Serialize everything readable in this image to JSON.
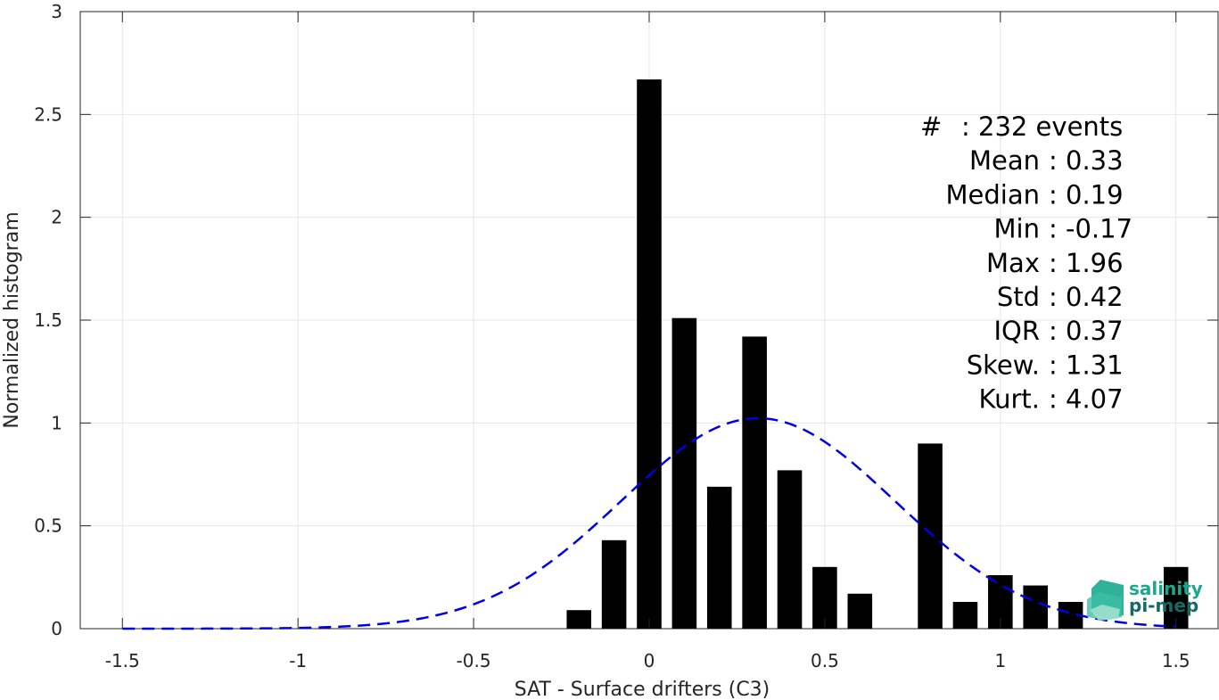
{
  "chart_data": {
    "type": "bar",
    "xlabel": "SAT - Surface drifters (C3)",
    "ylabel": "Normalized histogram",
    "xlim": [
      -1.62,
      1.62
    ],
    "ylim": [
      0,
      3
    ],
    "xticks": [
      -1.5,
      -1,
      -0.5,
      0,
      0.5,
      1,
      1.5
    ],
    "xtick_labels": [
      "-1.5",
      "-1",
      "-0.5",
      "0",
      "0.5",
      "1",
      "1.5"
    ],
    "yticks": [
      0,
      0.5,
      1,
      1.5,
      2,
      2.5,
      3
    ],
    "ytick_labels": [
      "0",
      "0.5",
      "1",
      "1.5",
      "2",
      "2.5",
      "3"
    ],
    "grid": true,
    "bar_color": "#000000",
    "bins": [
      {
        "x": -0.2,
        "y": 0.09
      },
      {
        "x": -0.1,
        "y": 0.43
      },
      {
        "x": 0.0,
        "y": 2.67
      },
      {
        "x": 0.1,
        "y": 1.51
      },
      {
        "x": 0.2,
        "y": 0.69
      },
      {
        "x": 0.3,
        "y": 1.42
      },
      {
        "x": 0.4,
        "y": 0.77
      },
      {
        "x": 0.5,
        "y": 0.3
      },
      {
        "x": 0.6,
        "y": 0.17
      },
      {
        "x": 0.8,
        "y": 0.9
      },
      {
        "x": 0.9,
        "y": 0.13
      },
      {
        "x": 1.0,
        "y": 0.26
      },
      {
        "x": 1.1,
        "y": 0.21
      },
      {
        "x": 1.2,
        "y": 0.13
      },
      {
        "x": 1.5,
        "y": 0.3
      }
    ],
    "fit": {
      "type": "normal",
      "mean": 0.31,
      "std": 0.39,
      "x_range": [
        -1.5,
        1.5
      ],
      "color": "#0000e6",
      "style": "dashed"
    },
    "stats": [
      {
        "label": "#",
        "value": ": 232 events"
      },
      {
        "label": "Mean",
        "value": ": 0.33"
      },
      {
        "label": "Median",
        "value": ": 0.19"
      },
      {
        "label": "Min",
        "value": ": -0.17"
      },
      {
        "label": "Max",
        "value": ": 1.96"
      },
      {
        "label": "Std",
        "value": ": 0.42"
      },
      {
        "label": "IQR",
        "value": ": 0.37"
      },
      {
        "label": "Skew.",
        "value": ": 1.31"
      },
      {
        "label": "Kurt.",
        "value": ": 4.07"
      }
    ]
  },
  "logo": {
    "line1": "salinity",
    "line2": "pi-mep",
    "color1": "#1aa88f",
    "color2": "#136b63"
  }
}
